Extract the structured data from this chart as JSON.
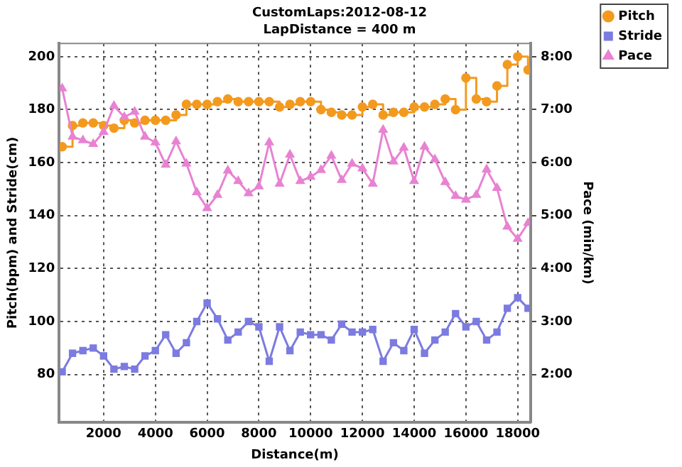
{
  "chart_data": {
    "type": "line",
    "title": "CustomLaps:2012-08-12",
    "subtitle": "LapDistance = 400 m",
    "xlabel": "Distance(m)",
    "ylabel": "Pitch(bpm) and Stride(cm)",
    "y2label": "Pace (min/km)",
    "x": [
      400,
      800,
      1200,
      1600,
      2000,
      2400,
      2800,
      3200,
      3600,
      4000,
      4400,
      4800,
      5200,
      5600,
      6000,
      6400,
      6800,
      7200,
      7600,
      8000,
      8400,
      8800,
      9200,
      9600,
      10000,
      10400,
      10800,
      11200,
      11600,
      12000,
      12400,
      12800,
      13200,
      13600,
      14000,
      14400,
      14800,
      15200,
      15600,
      16000,
      16400,
      16800,
      17200,
      17600,
      18000,
      18400
    ],
    "series": [
      {
        "name": "Pitch",
        "type": "step",
        "marker": "circle",
        "color": "#f39a1e",
        "values": [
          166,
          174,
          175,
          175,
          174,
          173,
          176,
          175,
          176,
          176,
          176,
          178,
          182,
          182,
          182,
          183,
          184,
          183,
          183,
          183,
          183,
          181,
          182,
          183,
          183,
          180,
          179,
          178,
          178,
          181,
          182,
          178,
          179,
          179,
          181,
          181,
          182,
          184,
          180,
          192,
          184,
          183,
          189,
          197,
          200,
          195
        ]
      },
      {
        "name": "Stride",
        "marker": "square",
        "color": "#7b7be0",
        "values": [
          81,
          88,
          89,
          90,
          87,
          82,
          83,
          82,
          87,
          89,
          95,
          88,
          92,
          100,
          107,
          101,
          93,
          96,
          100,
          98,
          85,
          98,
          89,
          96,
          95,
          95,
          93,
          99,
          96,
          96,
          97,
          85,
          92,
          89,
          97,
          88,
          93,
          96,
          103,
          98,
          100,
          93,
          96,
          105,
          109,
          105
        ]
      },
      {
        "name": "Pace",
        "marker": "triangle",
        "axis": "y2",
        "color": "#e882d2",
        "values": [
          7.4,
          6.49,
          6.42,
          6.35,
          6.58,
          7.07,
          6.86,
          6.96,
          6.49,
          6.38,
          5.96,
          6.4,
          5.98,
          5.44,
          5.14,
          5.39,
          5.85,
          5.65,
          5.42,
          5.55,
          6.38,
          5.6,
          6.15,
          5.65,
          5.73,
          5.86,
          6.13,
          5.67,
          5.98,
          5.89,
          5.6,
          6.62,
          6.02,
          6.28,
          5.65,
          6.3,
          6.06,
          5.63,
          5.37,
          5.3,
          5.39,
          5.87,
          5.52,
          4.79,
          4.56,
          4.86
        ]
      }
    ],
    "xlim": [
      280,
      18500
    ],
    "xticks": [
      2000,
      4000,
      6000,
      8000,
      10000,
      12000,
      14000,
      16000,
      18000
    ],
    "ylim": [
      62,
      205
    ],
    "yticks": [
      80,
      100,
      120,
      140,
      160,
      180,
      200
    ],
    "y2lim": [
      1.1,
      8.25
    ],
    "y2ticks": [
      {
        "value": 2,
        "label": "2:00"
      },
      {
        "value": 3,
        "label": "3:00"
      },
      {
        "value": 4,
        "label": "4:00"
      },
      {
        "value": 5,
        "label": "5:00"
      },
      {
        "value": 6,
        "label": "6:00"
      },
      {
        "value": 7,
        "label": "7:00"
      },
      {
        "value": 8,
        "label": "8:00"
      }
    ],
    "grid": true,
    "legend": "top right",
    "line_style": "solid"
  }
}
